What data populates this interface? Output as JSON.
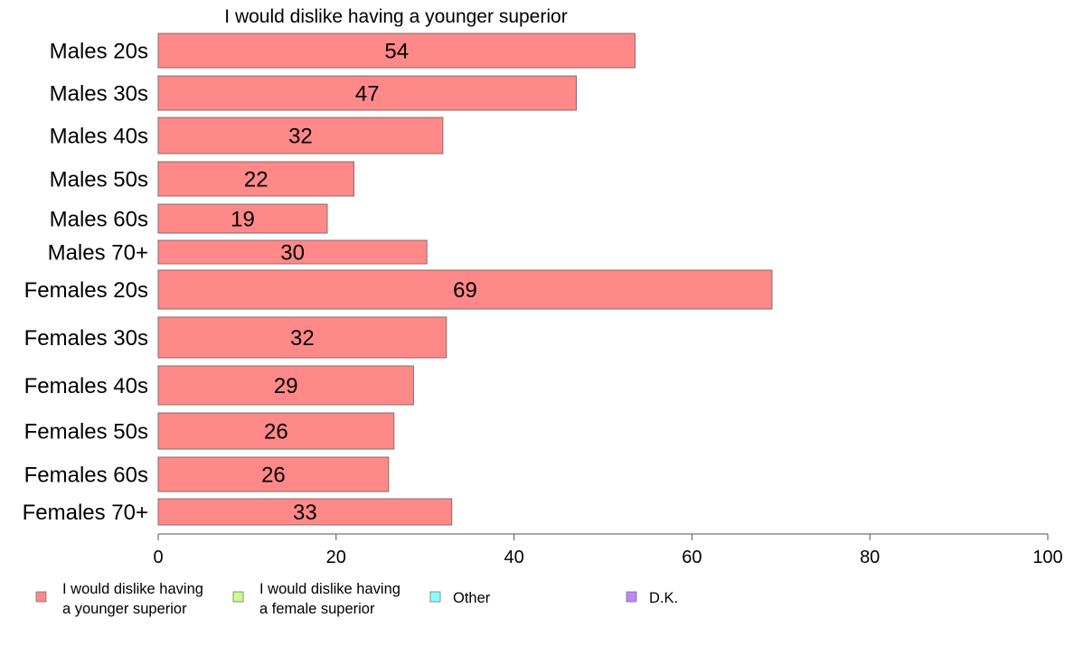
{
  "chart_data": {
    "type": "bar",
    "orientation": "horizontal",
    "title": "I would dislike having a younger superior",
    "categories": [
      "Males 20s",
      "Males 30s",
      "Males 40s",
      "Males 50s",
      "Males 60s",
      "Males 70+",
      "Females 20s",
      "Females 30s",
      "Females 40s",
      "Females 50s",
      "Females 60s",
      "Females 70+"
    ],
    "series": [
      {
        "name": "I would dislike having a younger superior",
        "color": "#ff8888",
        "values": [
          53.6,
          47,
          32,
          22,
          19,
          30.2,
          69,
          32.4,
          28.7,
          26.5,
          25.9,
          33
        ],
        "labels": [
          "54",
          "47",
          "32",
          "22",
          "19",
          "30",
          "69",
          "32",
          "29",
          "26",
          "26",
          "33"
        ]
      }
    ],
    "xlim": [
      0,
      100
    ],
    "xticks": [
      "0",
      "20",
      "40",
      "60",
      "80",
      "100"
    ],
    "grid": false,
    "legend_position": "bottom",
    "legend": [
      {
        "lines": [
          "I would dislike having",
          "a younger superior"
        ],
        "color": "#ff8888"
      },
      {
        "lines": [
          "I would dislike having",
          "a female superior"
        ],
        "color": "#c8ff88"
      },
      {
        "lines": [
          "Other"
        ],
        "color": "#88ffff"
      },
      {
        "lines": [
          "D.K."
        ],
        "color": "#bb88ff"
      }
    ]
  }
}
